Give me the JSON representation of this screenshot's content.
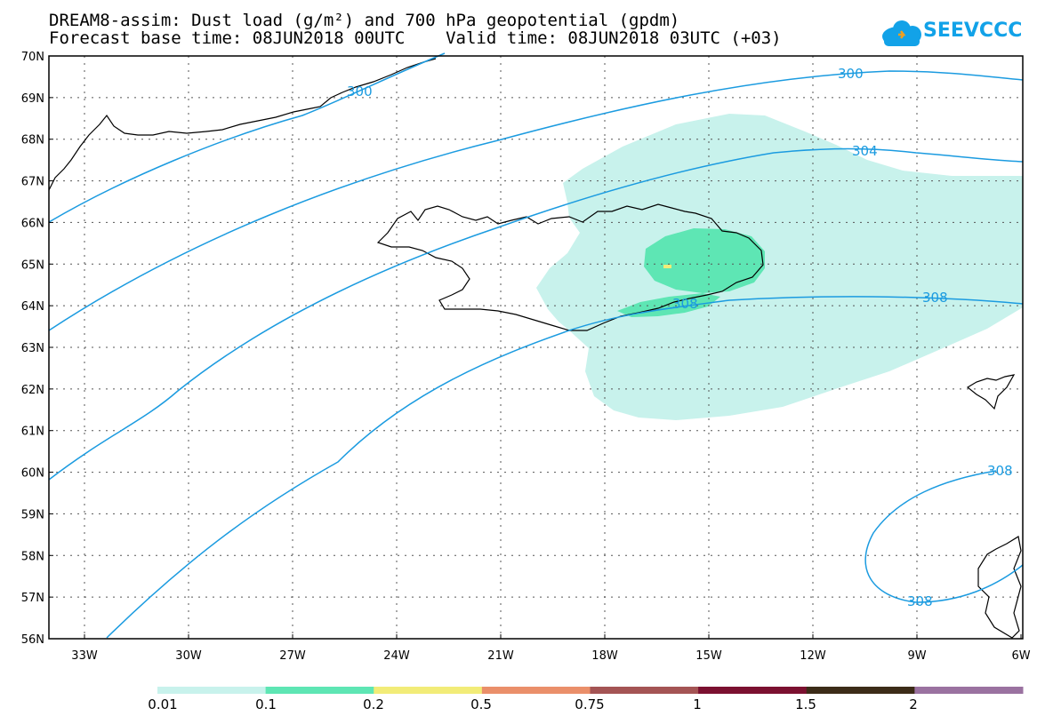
{
  "header": {
    "line1": "DREAM8-assim: Dust load (g/m²) and 700 hPa geopotential (gpdm)",
    "line2": "Forecast base time: 08JUN2018 00UTC    Valid time: 08JUN2018 03UTC (+03)",
    "logo_text": "SEEVCCC"
  },
  "map": {
    "lat_labels": [
      "70N",
      "69N",
      "68N",
      "67N",
      "66N",
      "65N",
      "64N",
      "63N",
      "62N",
      "61N",
      "60N",
      "59N",
      "58N",
      "57N",
      "56N"
    ],
    "lon_labels": [
      "33W",
      "30W",
      "27W",
      "24W",
      "21W",
      "18W",
      "15W",
      "12W",
      "9W",
      "6W"
    ],
    "contour_labels": {
      "c300a": "300",
      "c300b": "300",
      "c304": "304",
      "c308a": "308",
      "c308b": "308",
      "c308c": "308",
      "c308d": "308"
    },
    "colors": {
      "contour": "#1b9be0",
      "dust_0_01": "#c8f2ec",
      "dust_0_1": "#5ee6b4",
      "dust_0_2": "#f2ec78"
    }
  },
  "colorbar": {
    "labels": [
      "0.01",
      "0.1",
      "0.2",
      "0.5",
      "0.75",
      "1",
      "1.5",
      "2"
    ],
    "colors": [
      "#c8f2ec",
      "#5ee6b4",
      "#f2ec78",
      "#ea8f6a",
      "#a45454",
      "#7b1030",
      "#3c2c18",
      "#9a72a0"
    ]
  }
}
